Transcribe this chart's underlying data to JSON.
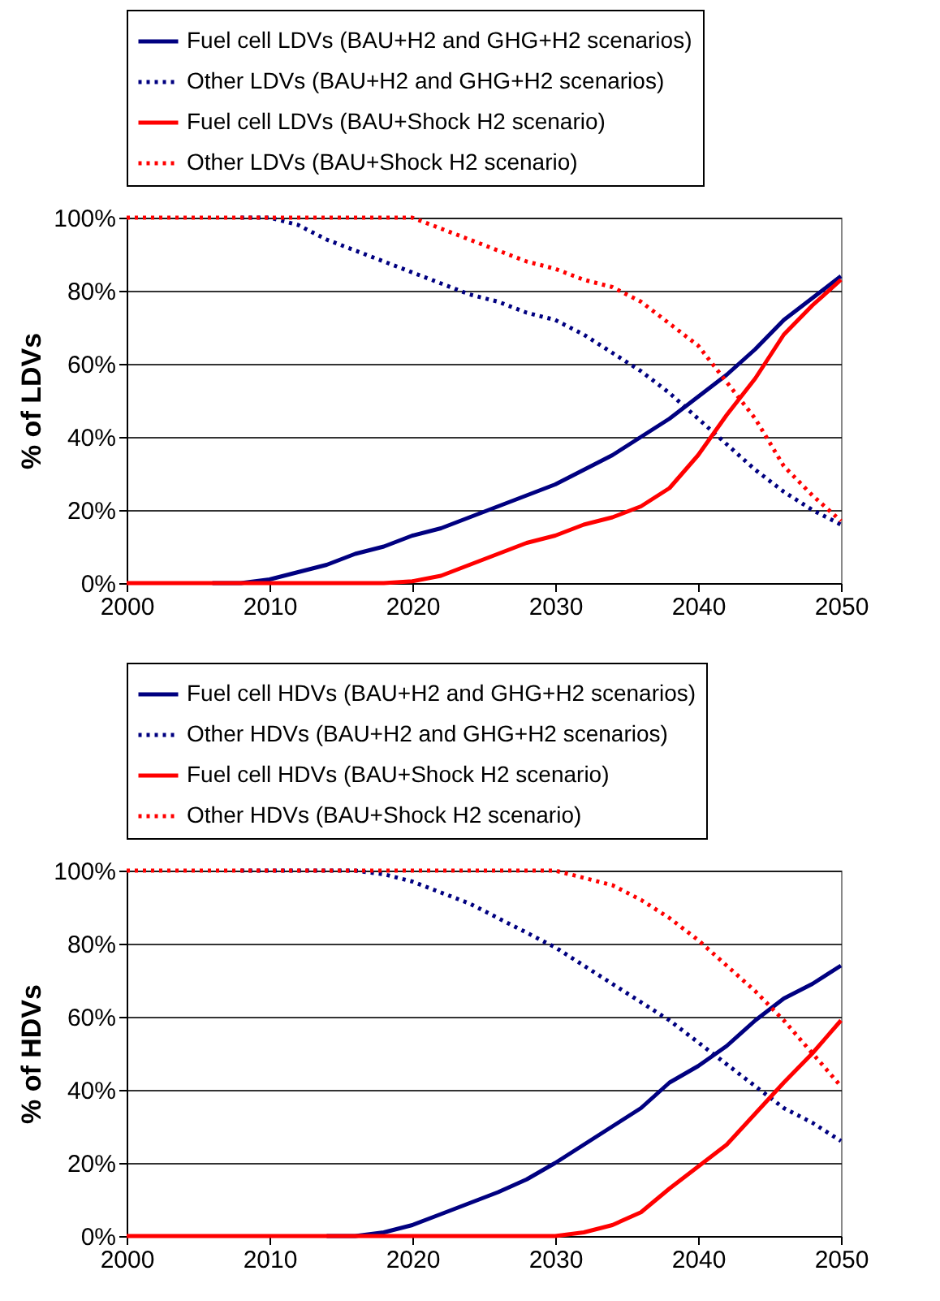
{
  "chart_data": [
    {
      "type": "line",
      "ylabel": "% of LDVs",
      "x": [
        2000,
        2002,
        2004,
        2006,
        2008,
        2010,
        2012,
        2014,
        2016,
        2018,
        2020,
        2022,
        2024,
        2026,
        2028,
        2030,
        2032,
        2034,
        2036,
        2038,
        2040,
        2042,
        2044,
        2046,
        2048,
        2050
      ],
      "xlim": [
        2000,
        2050
      ],
      "xticks": [
        2000,
        2010,
        2020,
        2030,
        2040,
        2050
      ],
      "ylim": [
        0,
        100
      ],
      "yticks": [
        {
          "value": 0,
          "label": "0%"
        },
        {
          "value": 20,
          "label": "20%"
        },
        {
          "value": 40,
          "label": "40%"
        },
        {
          "value": 60,
          "label": "60%"
        },
        {
          "value": 80,
          "label": "80%"
        },
        {
          "value": 100,
          "label": "100%"
        }
      ],
      "grid": "y",
      "legend": "top",
      "marker": "none",
      "series": [
        {
          "name": "Fuel cell LDVs (BAU+H2 and GHG+H2 scenarios)",
          "color": "#000080",
          "line_style": "solid",
          "values": [
            null,
            null,
            null,
            0,
            0,
            1,
            3,
            5,
            8,
            10,
            13,
            15,
            18,
            21,
            24,
            27,
            31,
            35,
            40,
            45,
            51,
            57,
            64,
            72,
            78,
            84
          ]
        },
        {
          "name": "Other LDVs (BAU+H2 and GHG+H2 scenarios)",
          "color": "#000080",
          "line_style": "dotted",
          "values": [
            null,
            null,
            null,
            null,
            100,
            100,
            98,
            94,
            91,
            88,
            85,
            82,
            79,
            77,
            74,
            72,
            68,
            63,
            58,
            52,
            45,
            38,
            31,
            25,
            20,
            16
          ]
        },
        {
          "name": "Fuel cell LDVs (BAU+Shock H2 scenario)",
          "color": "#ff0000",
          "line_style": "solid",
          "values": [
            0,
            0,
            0,
            0,
            0,
            0,
            0,
            0,
            0,
            0,
            0.5,
            2,
            5,
            8,
            11,
            13,
            16,
            18,
            21,
            26,
            35,
            46,
            56,
            68,
            76,
            83
          ]
        },
        {
          "name": "Other LDVs (BAU+Shock H2 scenario)",
          "color": "#ff0000",
          "line_style": "dotted",
          "values": [
            100,
            100,
            100,
            100,
            100,
            100,
            100,
            100,
            100,
            100,
            100,
            97,
            94,
            91,
            88,
            86,
            83,
            81,
            77,
            71,
            65,
            55,
            45,
            32,
            24,
            17
          ]
        }
      ]
    },
    {
      "type": "line",
      "ylabel": "% of HDVs",
      "x": [
        2000,
        2002,
        2004,
        2006,
        2008,
        2010,
        2012,
        2014,
        2016,
        2018,
        2020,
        2022,
        2024,
        2026,
        2028,
        2030,
        2032,
        2034,
        2036,
        2038,
        2040,
        2042,
        2044,
        2046,
        2048,
        2050
      ],
      "xlim": [
        2000,
        2050
      ],
      "xticks": [
        2000,
        2010,
        2020,
        2030,
        2040,
        2050
      ],
      "ylim": [
        0,
        100
      ],
      "yticks": [
        {
          "value": 0,
          "label": "0%"
        },
        {
          "value": 20,
          "label": "20%"
        },
        {
          "value": 40,
          "label": "40%"
        },
        {
          "value": 60,
          "label": "60%"
        },
        {
          "value": 80,
          "label": "80%"
        },
        {
          "value": 100,
          "label": "100%"
        }
      ],
      "grid": "y",
      "legend": "top",
      "marker": "none",
      "series": [
        {
          "name": "Fuel cell HDVs (BAU+H2 and GHG+H2 scenarios)",
          "color": "#000080",
          "line_style": "solid",
          "values": [
            null,
            null,
            null,
            null,
            null,
            null,
            null,
            0,
            0,
            1,
            3,
            6,
            9,
            12,
            15.5,
            20,
            25,
            30,
            35,
            42,
            46.5,
            52,
            59,
            65,
            69,
            74
          ]
        },
        {
          "name": "Other HDVs (BAU+H2 and GHG+H2 scenarios)",
          "color": "#000080",
          "line_style": "dotted",
          "values": [
            null,
            null,
            null,
            null,
            100,
            100,
            100,
            100,
            100,
            99,
            97,
            94,
            91,
            87,
            83,
            79,
            74,
            69,
            64,
            59,
            53,
            47,
            41,
            35,
            31,
            26
          ]
        },
        {
          "name": "Fuel cell HDVs (BAU+Shock H2 scenario)",
          "color": "#ff0000",
          "line_style": "solid",
          "values": [
            0,
            0,
            0,
            0,
            0,
            0,
            0,
            0,
            0,
            0,
            0,
            0,
            0,
            0,
            0,
            0,
            1,
            3,
            6.5,
            13,
            19,
            25,
            33.5,
            42,
            50,
            59
          ]
        },
        {
          "name": "Other HDVs (BAU+Shock H2 scenario)",
          "color": "#ff0000",
          "line_style": "dotted",
          "values": [
            100,
            100,
            100,
            100,
            100,
            100,
            100,
            100,
            100,
            100,
            100,
            100,
            100,
            100,
            100,
            100,
            98,
            96,
            92,
            87,
            81,
            74,
            67,
            59,
            50,
            41
          ]
        }
      ]
    }
  ]
}
